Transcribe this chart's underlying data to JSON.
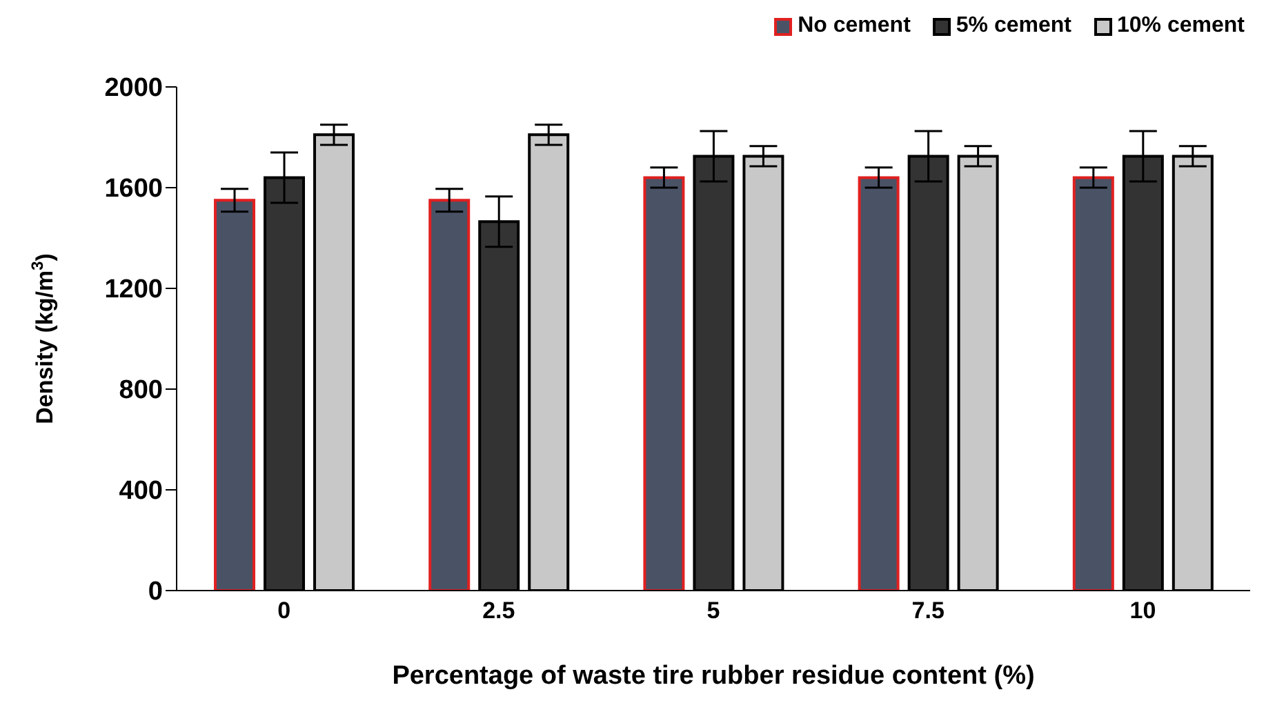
{
  "chart_data": {
    "type": "bar",
    "xlabel": "Percentage of waste tire rubber residue content (%)",
    "ylabel": "Density (kg/m$^{3}$)",
    "categories": [
      "0",
      "2.5",
      "5",
      "7.5",
      "10"
    ],
    "series": [
      {
        "name": "No cement",
        "color": "#4a5366",
        "values": [
          1550,
          1550,
          1640,
          1640,
          1640
        ],
        "errors": [
          45,
          45,
          40,
          40,
          40
        ]
      },
      {
        "name": "5% cement",
        "color": "#333333",
        "values": [
          1640,
          1465,
          1725,
          1725,
          1725
        ],
        "errors": [
          100,
          100,
          100,
          100,
          100
        ]
      },
      {
        "name": "10% cement",
        "color": "#c8c8c8",
        "values": [
          1810,
          1810,
          1725,
          1725,
          1725
        ],
        "errors": [
          40,
          40,
          40,
          40,
          40
        ]
      }
    ],
    "ylim": [
      0,
      2000
    ],
    "yticks": [
      0,
      400,
      800,
      1200,
      1600,
      2000
    ],
    "grid": false,
    "legend": "top right"
  }
}
